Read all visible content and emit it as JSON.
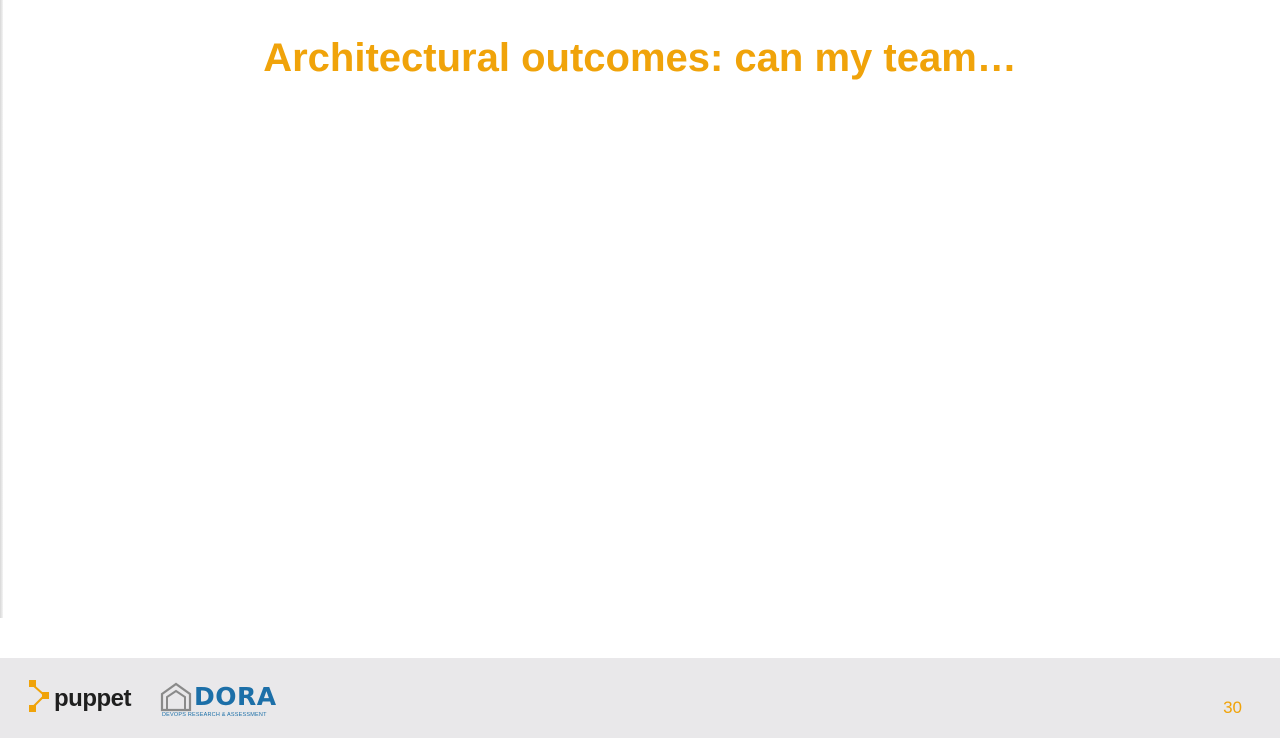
{
  "slide": {
    "title": "Architectural outcomes: can my team…",
    "page_number": "30"
  },
  "footer": {
    "puppet_logo_text": "puppet",
    "dora_logo_text": "DORA",
    "dora_tagline": "DEVOPS RESEARCH & ASSESSMENT"
  },
  "colors": {
    "accent": "#f0a30a",
    "footer_bg": "#e9e8ea",
    "dora_blue": "#1c6fa8"
  },
  "icons": {
    "puppet_mark": "puppet-logo-icon",
    "dora_mark": "dora-house-icon"
  }
}
